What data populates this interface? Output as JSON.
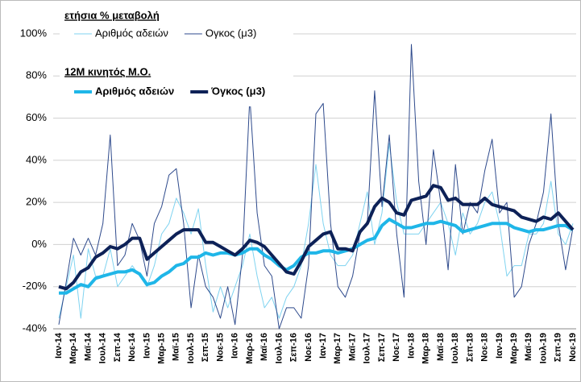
{
  "chart_data": {
    "type": "line",
    "categories": [
      "Ιαν-14",
      null,
      "Μαρ-14",
      null,
      "Μαϊ-14",
      null,
      "Ιουλ-14",
      null,
      "Σεπ-14",
      null,
      "Νοε-14",
      null,
      "Ιαν-15",
      null,
      "Μαρ-15",
      null,
      "Μαϊ-15",
      null,
      "Ιουλ-15",
      null,
      "Σεπ-15",
      null,
      "Νοε-15",
      null,
      "Ιαν-16",
      null,
      "Μαρ-16",
      null,
      "Μαϊ-16",
      null,
      "Ιουλ-16",
      null,
      "Σεπ-16",
      null,
      "Νοε-16",
      null,
      "Ιαν-17",
      null,
      "Μαρ-17",
      null,
      "Μαϊ-17",
      null,
      "Ιουλ-17",
      null,
      "Σεπ-17",
      null,
      "Νοε-17",
      null,
      "Ιαν-18",
      null,
      "Μαρ-18",
      null,
      "Μαϊ-18",
      null,
      "Ιουλ-18",
      null,
      "Σεπ-18",
      null,
      "Νοε-18",
      null,
      "Ιαν-19",
      null,
      "Μαρ-19",
      null,
      "Μαϊ-19",
      null,
      "Ιουλ-19",
      null,
      "Σεπ-19",
      null,
      "Νοε-19"
    ],
    "legend_groups": [
      "ετήσια % μεταβολή",
      "12M κινητός Μ.Ο."
    ],
    "series": [
      {
        "name": "Αριθμός αδειών",
        "group": 0,
        "color": "#7fd3f0",
        "line_width": 1,
        "values": [
          -35,
          -20,
          -5,
          -35,
          -2,
          -15,
          -15,
          -2,
          -20,
          -15,
          -10,
          -15,
          -20,
          -10,
          5,
          10,
          22,
          15,
          5,
          17,
          -10,
          -32,
          -20,
          -30,
          -20,
          -10,
          5,
          -15,
          -30,
          -25,
          -35,
          -25,
          -20,
          -10,
          10,
          38,
          10,
          -5,
          -10,
          -10,
          -5,
          10,
          25,
          0,
          15,
          48,
          20,
          5,
          5,
          5,
          10,
          15,
          20,
          10,
          -5,
          15,
          5,
          10,
          20,
          25,
          10,
          -15,
          -10,
          -10,
          5,
          5,
          10,
          30,
          5,
          0,
          10
        ]
      },
      {
        "name": "Ογκος  (μ3)",
        "group": 0,
        "color": "#2e4a8c",
        "line_width": 1,
        "values": [
          -38,
          -18,
          3,
          -5,
          3,
          -5,
          10,
          52,
          -10,
          -5,
          10,
          2,
          -15,
          10,
          18,
          33,
          36,
          10,
          -30,
          -5,
          -20,
          -25,
          -35,
          -20,
          -38,
          -5,
          70,
          15,
          -10,
          -15,
          -40,
          -30,
          -30,
          -35,
          -10,
          62,
          67,
          10,
          -20,
          -25,
          -15,
          5,
          10,
          73,
          18,
          52,
          5,
          -25,
          95,
          30,
          0,
          45,
          20,
          -12,
          38,
          5,
          20,
          15,
          35,
          50,
          15,
          20,
          -25,
          -20,
          0,
          10,
          25,
          62,
          10,
          -12,
          8
        ]
      },
      {
        "name": "Αριθμός αδειών",
        "group": 1,
        "color": "#1fb6e8",
        "line_width": 4,
        "values": [
          -23,
          -23,
          -21,
          -19,
          -20,
          -16,
          -15,
          -14,
          -13,
          -13,
          -12,
          -14,
          -19,
          -18,
          -15,
          -13,
          -10,
          -9,
          -6,
          -6,
          -4,
          -5,
          -4,
          -4,
          -5,
          -4,
          -2,
          -2,
          -5,
          -7,
          -10,
          -12,
          -10,
          -6,
          -4,
          -4,
          -3,
          -3,
          -4,
          -3,
          -2,
          0,
          2,
          3,
          9,
          12,
          10,
          8,
          8,
          9,
          10,
          10,
          11,
          10,
          9,
          6,
          7,
          8,
          9,
          10,
          10,
          10,
          8,
          7,
          6,
          7,
          7,
          8,
          9,
          9,
          7
        ]
      },
      {
        "name": "Όγκος (μ3)",
        "group": 1,
        "color": "#0d2157",
        "line_width": 4,
        "values": [
          -20,
          -21,
          -18,
          -13,
          -11,
          -6,
          -4,
          -1,
          -2,
          0,
          3,
          3,
          -7,
          -4,
          -1,
          2,
          5,
          7,
          7,
          7,
          1,
          1,
          -1,
          -3,
          -5,
          -2,
          2,
          1,
          -1,
          -5,
          -9,
          -13,
          -14,
          -8,
          -1,
          2,
          5,
          6,
          -2,
          -2,
          -3,
          6,
          10,
          18,
          22,
          20,
          15,
          14,
          21,
          22,
          23,
          28,
          27,
          21,
          22,
          19,
          19,
          19,
          22,
          19,
          18,
          17,
          16,
          13,
          12,
          11,
          13,
          12,
          15,
          11,
          7
        ]
      }
    ],
    "ylim": [
      -40,
      100
    ],
    "yticks": [
      {
        "value": -40,
        "label": "-40%"
      },
      {
        "value": -20,
        "label": "-20%"
      },
      {
        "value": 0,
        "label": "0%"
      },
      {
        "value": 20,
        "label": "20%"
      },
      {
        "value": 40,
        "label": "40%"
      },
      {
        "value": 60,
        "label": "60%"
      },
      {
        "value": 80,
        "label": "80%"
      },
      {
        "value": 100,
        "label": "100%"
      }
    ],
    "grid": true
  }
}
